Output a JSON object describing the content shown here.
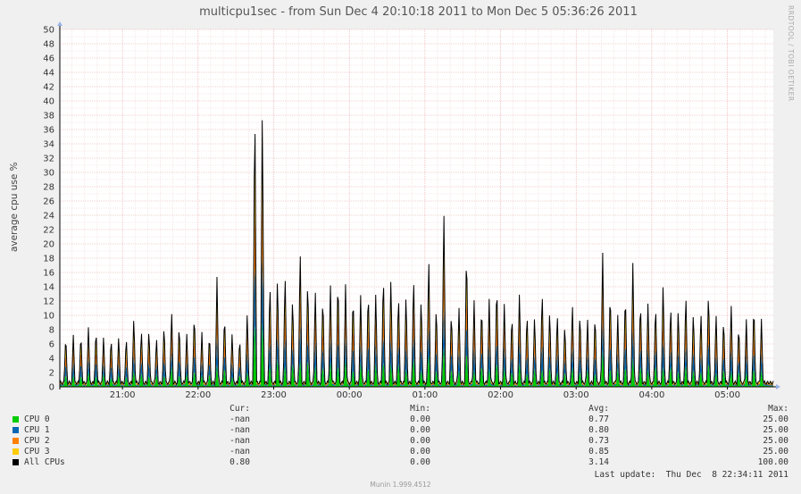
{
  "chart_data": {
    "type": "area",
    "title": "multicpu1sec - from Sun Dec  4 20:10:18 2011 to Mon Dec  5 05:36:26 2011",
    "ylabel": "average cpu use %",
    "ylim": [
      0,
      50
    ],
    "yticks": [
      0,
      2,
      4,
      6,
      8,
      10,
      12,
      14,
      16,
      18,
      20,
      22,
      24,
      26,
      28,
      30,
      32,
      34,
      36,
      38,
      40,
      42,
      44,
      46,
      48,
      50
    ],
    "x_start": "20:10:18",
    "x_end": "05:36:26",
    "xticks": [
      "21:00",
      "22:00",
      "23:00",
      "00:00",
      "01:00",
      "02:00",
      "03:00",
      "04:00",
      "05:00"
    ],
    "grid": true,
    "stacked": true,
    "spike_start": "20:15",
    "spike_interval_minutes": 6,
    "spike_totals": [
      7.5,
      7.3,
      7.8,
      8.5,
      8.5,
      7.2,
      7.2,
      7.3,
      7.3,
      10.2,
      8.4,
      8.4,
      7.2,
      9.1,
      10.9,
      9.2,
      7.7,
      10.8,
      7.8,
      7.8,
      15.5,
      10.6,
      7.6,
      7.2,
      10.6,
      41.8,
      40.7,
      15.2,
      16.2,
      16.5,
      13.3,
      19.8,
      15.9,
      13.9,
      13.4,
      14.6,
      15.9,
      14.4,
      13.6,
      13.1,
      14.2,
      13.5,
      16.6,
      15.8,
      13.6,
      13.5,
      16.1,
      13.1,
      18.9,
      11.9,
      25.6,
      11.1,
      11.5,
      20.2,
      12.3,
      12.0,
      12.4,
      15.2,
      12.0,
      10.7,
      13.7,
      10.9,
      10.3,
      14.1,
      11.2,
      10.7,
      9.2,
      12.1,
      11.0,
      9.9,
      10.7,
      19.3,
      14.1,
      10.1,
      13.8,
      17.7,
      12.7,
      12.2,
      12.2,
      15.0,
      12.1,
      11.4,
      13.6,
      11.1,
      10.9,
      14.1,
      10.6,
      10.1,
      11.8,
      9.1,
      9.6,
      12.1,
      9.6
    ],
    "background_level": 0.8,
    "series": [
      {
        "name": "CPU 0",
        "color": "#00cc00",
        "cur": "-nan",
        "min": "0.00",
        "avg": "0.77",
        "max": "25.00"
      },
      {
        "name": "CPU 1",
        "color": "#0066b3",
        "cur": "-nan",
        "min": "0.00",
        "avg": "0.80",
        "max": "25.00"
      },
      {
        "name": "CPU 2",
        "color": "#ff8000",
        "cur": "-nan",
        "min": "0.00",
        "avg": "0.73",
        "max": "25.00"
      },
      {
        "name": "CPU 3",
        "color": "#ffcc00",
        "cur": "-nan",
        "min": "0.00",
        "avg": "0.85",
        "max": "25.00"
      },
      {
        "name": "All CPUs",
        "color": "#000000",
        "cur": "0.80",
        "min": "0.00",
        "avg": "3.14",
        "max": "100.00"
      }
    ]
  },
  "legend_headers": {
    "cur": "Cur:",
    "min": "Min:",
    "avg": "Avg:",
    "max": "Max:"
  },
  "last_update": "Last update:  Thu Dec  8 22:34:11 2011",
  "watermark": "RRDTOOL / TOBI OETIKER",
  "version": "Munin 1.999.4512"
}
